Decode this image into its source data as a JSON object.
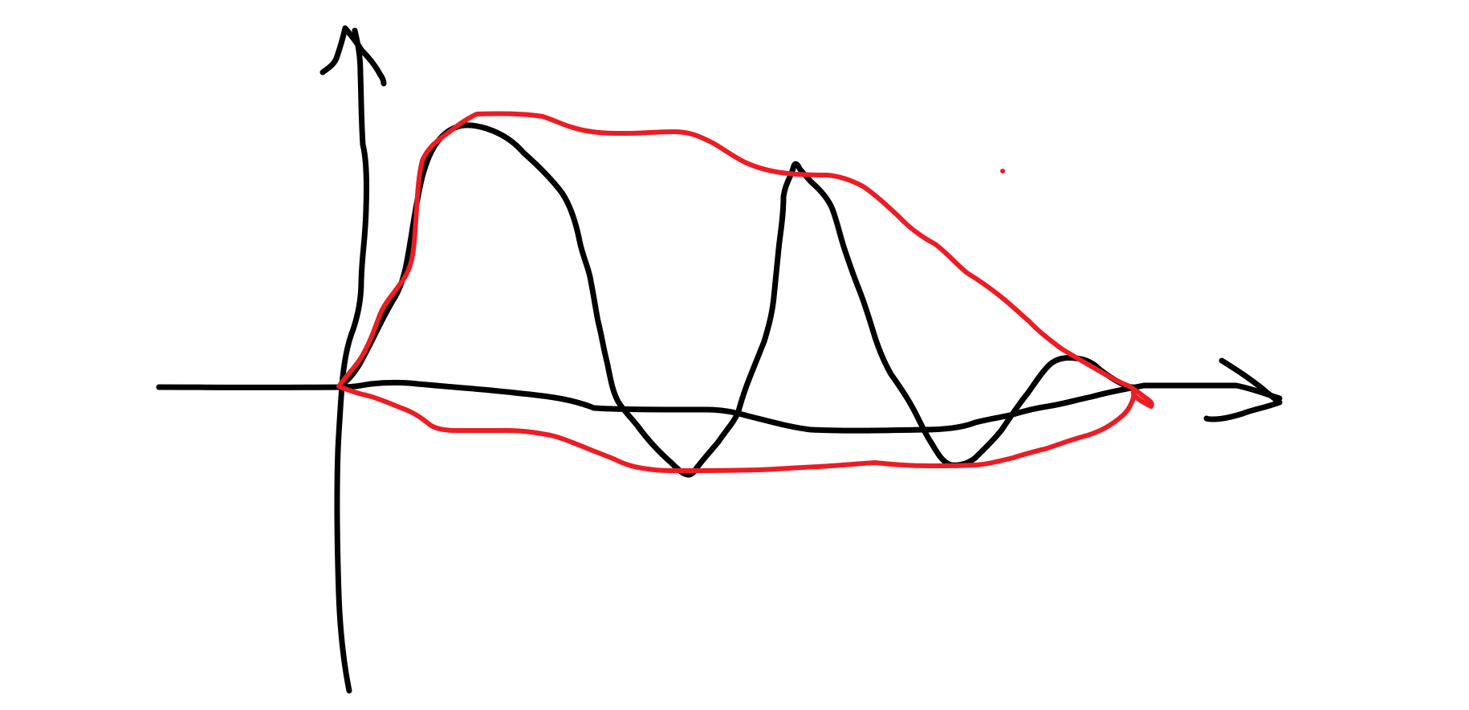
{
  "sketch": {
    "background_color": "#ffffff",
    "axes_color": "#000000",
    "signal_color": "#000000",
    "envelope_color": "#ed1c24",
    "has_vertical_arrow": true,
    "has_horizontal_arrow": true,
    "signal_shape": "damped oscillation",
    "envelope_shape": "closed loop around signal"
  }
}
